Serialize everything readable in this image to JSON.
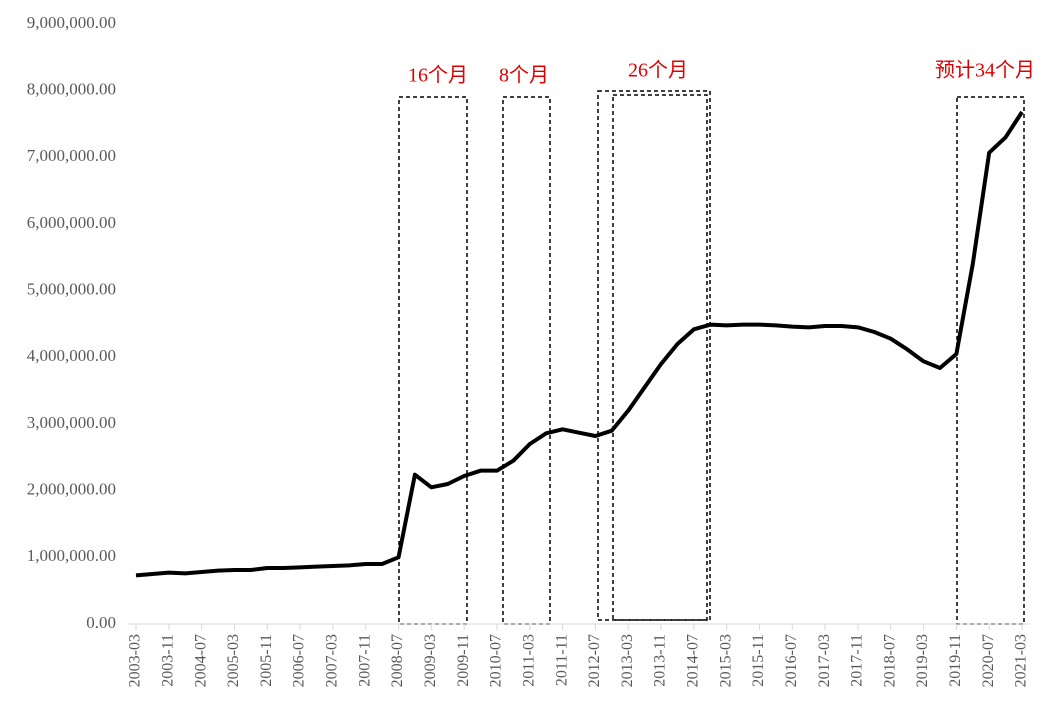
{
  "chart_data": {
    "type": "line",
    "categories": [
      "2003-03",
      null,
      "2003-11",
      null,
      "2004-07",
      null,
      "2005-03",
      null,
      "2005-11",
      null,
      "2006-07",
      null,
      "2007-03",
      null,
      "2007-11",
      null,
      "2008-07",
      null,
      "2009-03",
      null,
      "2009-11",
      null,
      "2010-07",
      null,
      "2011-03",
      null,
      "2011-11",
      null,
      "2012-07",
      null,
      "2013-03",
      null,
      "2013-11",
      null,
      "2014-07",
      null,
      "2015-03",
      null,
      "2015-11",
      null,
      "2016-07",
      null,
      "2017-03",
      null,
      "2017-11",
      null,
      "2018-07",
      null,
      "2019-03",
      null,
      "2019-11",
      null,
      "2020-07",
      null,
      "2021-03"
    ],
    "series": [
      {
        "color": "#000000",
        "values": [
          730000,
          750000,
          770000,
          760000,
          780000,
          800000,
          810000,
          810000,
          840000,
          840000,
          850000,
          860000,
          870000,
          880000,
          900000,
          900000,
          1000000,
          2240000,
          2050000,
          2100000,
          2220000,
          2300000,
          2300000,
          2450000,
          2700000,
          2860000,
          2920000,
          2870000,
          2820000,
          2900000,
          3200000,
          3550000,
          3900000,
          4200000,
          4420000,
          4490000,
          4480000,
          4490000,
          4490000,
          4480000,
          4460000,
          4450000,
          4470000,
          4470000,
          4450000,
          4380000,
          4280000,
          4120000,
          3940000,
          3840000,
          4050000,
          5400000,
          7070000,
          7300000,
          7680000
        ]
      }
    ],
    "ylim": [
      0,
      9000000
    ],
    "yticks": [
      {
        "value": 0,
        "label": "0.00"
      },
      {
        "value": 1000000,
        "label": "1,000,000.00"
      },
      {
        "value": 2000000,
        "label": "2,000,000.00"
      },
      {
        "value": 3000000,
        "label": "3,000,000.00"
      },
      {
        "value": 4000000,
        "label": "4,000,000.00"
      },
      {
        "value": 5000000,
        "label": "5,000,000.00"
      },
      {
        "value": 6000000,
        "label": "6,000,000.00"
      },
      {
        "value": 7000000,
        "label": "7,000,000.00"
      },
      {
        "value": 8000000,
        "label": "8,000,000.00"
      },
      {
        "value": 9000000,
        "label": "9,000,000.00"
      }
    ],
    "annotations": [
      "16个月",
      "8个月",
      "26个月",
      "预计34个月"
    ],
    "annotation_color": "#e00000"
  }
}
